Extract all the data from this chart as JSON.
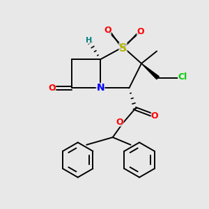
{
  "bg_color": "#e8e8e8",
  "atom_colors": {
    "S": "#b8b800",
    "N": "#0000ff",
    "O": "#ff0000",
    "Cl": "#00cc00",
    "H": "#008080",
    "C": "#000000"
  }
}
